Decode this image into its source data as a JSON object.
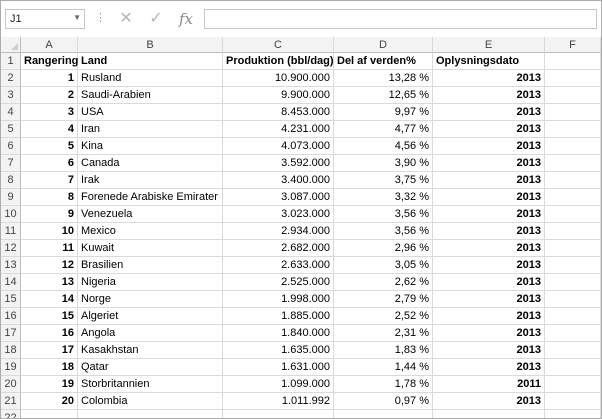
{
  "name_box": {
    "value": "J1"
  },
  "formula_bar": {
    "value": ""
  },
  "icons": {
    "cancel": "cancel-x-icon",
    "confirm": "check-icon",
    "function": "fx-icon",
    "dropdown": "chevron-down-icon"
  },
  "columns": [
    "A",
    "B",
    "C",
    "D",
    "E",
    "F"
  ],
  "row_numbers": [
    "1",
    "2",
    "3",
    "4",
    "5",
    "6",
    "7",
    "8",
    "9",
    "10",
    "11",
    "12",
    "13",
    "14",
    "15",
    "16",
    "17",
    "18",
    "19",
    "20",
    "21",
    "22"
  ],
  "table": {
    "headers": [
      "Rangering",
      "Land",
      "Produktion (bbl/dag)",
      "Del af verden%",
      "Oplysningsdato"
    ],
    "rows": [
      [
        "1",
        "Rusland",
        "10.900.000",
        "13,28 %",
        "2013"
      ],
      [
        "2",
        "Saudi-Arabien",
        "9.900.000",
        "12,65 %",
        "2013"
      ],
      [
        "3",
        "USA",
        "8.453.000",
        "9,97 %",
        "2013"
      ],
      [
        "4",
        "Iran",
        "4.231.000",
        "4,77 %",
        "2013"
      ],
      [
        "5",
        "Kina",
        "4.073.000",
        "4,56 %",
        "2013"
      ],
      [
        "6",
        "Canada",
        "3.592.000",
        "3,90 %",
        "2013"
      ],
      [
        "7",
        "Irak",
        "3.400.000",
        "3,75 %",
        "2013"
      ],
      [
        "8",
        "Forenede Arabiske Emirater",
        "3.087.000",
        "3,32 %",
        "2013"
      ],
      [
        "9",
        "Venezuela",
        "3.023.000",
        "3,56 %",
        "2013"
      ],
      [
        "10",
        "Mexico",
        "2.934.000",
        "3,56 %",
        "2013"
      ],
      [
        "11",
        "Kuwait",
        "2.682.000",
        "2,96 %",
        "2013"
      ],
      [
        "12",
        "Brasilien",
        "2.633.000",
        "3,05 %",
        "2013"
      ],
      [
        "13",
        "Nigeria",
        "2.525.000",
        "2,62 %",
        "2013"
      ],
      [
        "14",
        "Norge",
        "1.998.000",
        "2,79 %",
        "2013"
      ],
      [
        "15",
        "Algeriet",
        "1.885.000",
        "2,52 %",
        "2013"
      ],
      [
        "16",
        "Angola",
        "1.840.000",
        "2,31 %",
        "2013"
      ],
      [
        "17",
        "Kasakhstan",
        "1.635.000",
        "1,83 %",
        "2013"
      ],
      [
        "18",
        "Qatar",
        "1.631.000",
        "1,44 %",
        "2013"
      ],
      [
        "19",
        "Storbritannien",
        "1.099.000",
        "1,78 %",
        "2011"
      ],
      [
        "20",
        "Colombia",
        "1.011.992",
        "0,97 %",
        "2013"
      ]
    ]
  }
}
